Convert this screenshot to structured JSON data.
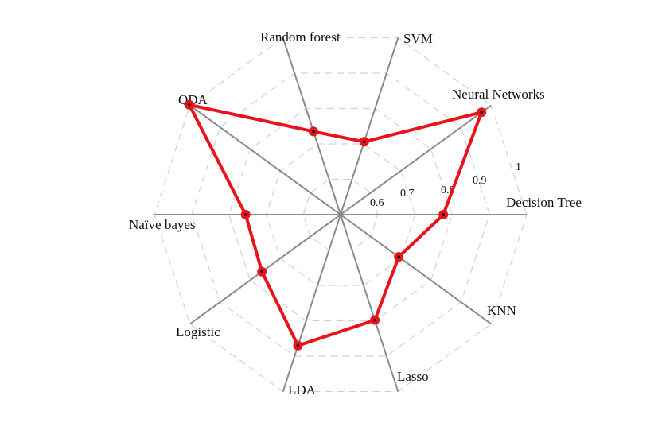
{
  "chart_data": {
    "type": "radar",
    "title": "",
    "categories": [
      "Decision Tree",
      "Neural Networks",
      "SVM",
      "Random forest",
      "QDA",
      "Naïve bayes",
      "Logistic",
      "LDA",
      "Lasso",
      "KNN"
    ],
    "series": [
      {
        "values": [
          0.776,
          0.968,
          0.706,
          0.735,
          1.002,
          0.755,
          0.761,
          0.87,
          0.798,
          0.693
        ]
      }
    ],
    "r_range": [
      0.5,
      1
    ],
    "r_ticks": [
      0.6,
      0.7,
      0.8,
      0.9,
      1
    ],
    "r_tick_labels": [
      "0.6",
      "0.7",
      "0.8",
      "0.9",
      "1"
    ],
    "grid": true,
    "grid_style": "dashed",
    "legend": "none",
    "colors": {
      "series": "#e8141c",
      "axis": "#8a8a8a",
      "grid": "#d2d2d2"
    }
  }
}
